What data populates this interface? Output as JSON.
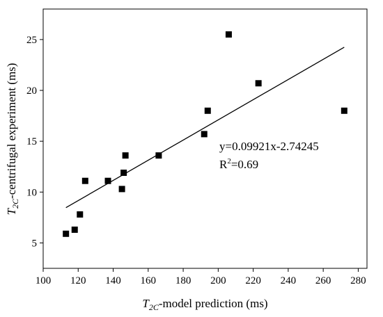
{
  "chart_data": {
    "type": "scatter",
    "xlabel": {
      "var": "T",
      "sub": "2C",
      "text": "-model prediction (ms)"
    },
    "ylabel": {
      "var": "T",
      "sub": "2C",
      "text": "-centrifugal experiment (ms)"
    },
    "xlim": [
      100,
      285
    ],
    "ylim": [
      2.5,
      28
    ],
    "xticks": [
      100,
      120,
      140,
      160,
      180,
      200,
      220,
      240,
      260,
      280
    ],
    "yticks": [
      5,
      10,
      15,
      20,
      25
    ],
    "points": [
      {
        "x": 113,
        "y": 5.9
      },
      {
        "x": 118,
        "y": 6.3
      },
      {
        "x": 121,
        "y": 7.8
      },
      {
        "x": 124,
        "y": 11.1
      },
      {
        "x": 137,
        "y": 11.1
      },
      {
        "x": 145,
        "y": 10.3
      },
      {
        "x": 146,
        "y": 11.9
      },
      {
        "x": 147,
        "y": 13.6
      },
      {
        "x": 166,
        "y": 13.6
      },
      {
        "x": 192,
        "y": 15.7
      },
      {
        "x": 194,
        "y": 18.0
      },
      {
        "x": 206,
        "y": 25.5
      },
      {
        "x": 223,
        "y": 20.7
      },
      {
        "x": 272,
        "y": 18.0
      }
    ],
    "fit_line": {
      "x": [
        113,
        272
      ],
      "slope": 0.09921,
      "intercept": -2.74245
    },
    "annotations": {
      "equation": "y=0.09921x-2.74245",
      "r2_base": "R",
      "r2_sup": "2",
      "r2_value": "=0.69"
    },
    "grid": false,
    "legend": "none"
  }
}
